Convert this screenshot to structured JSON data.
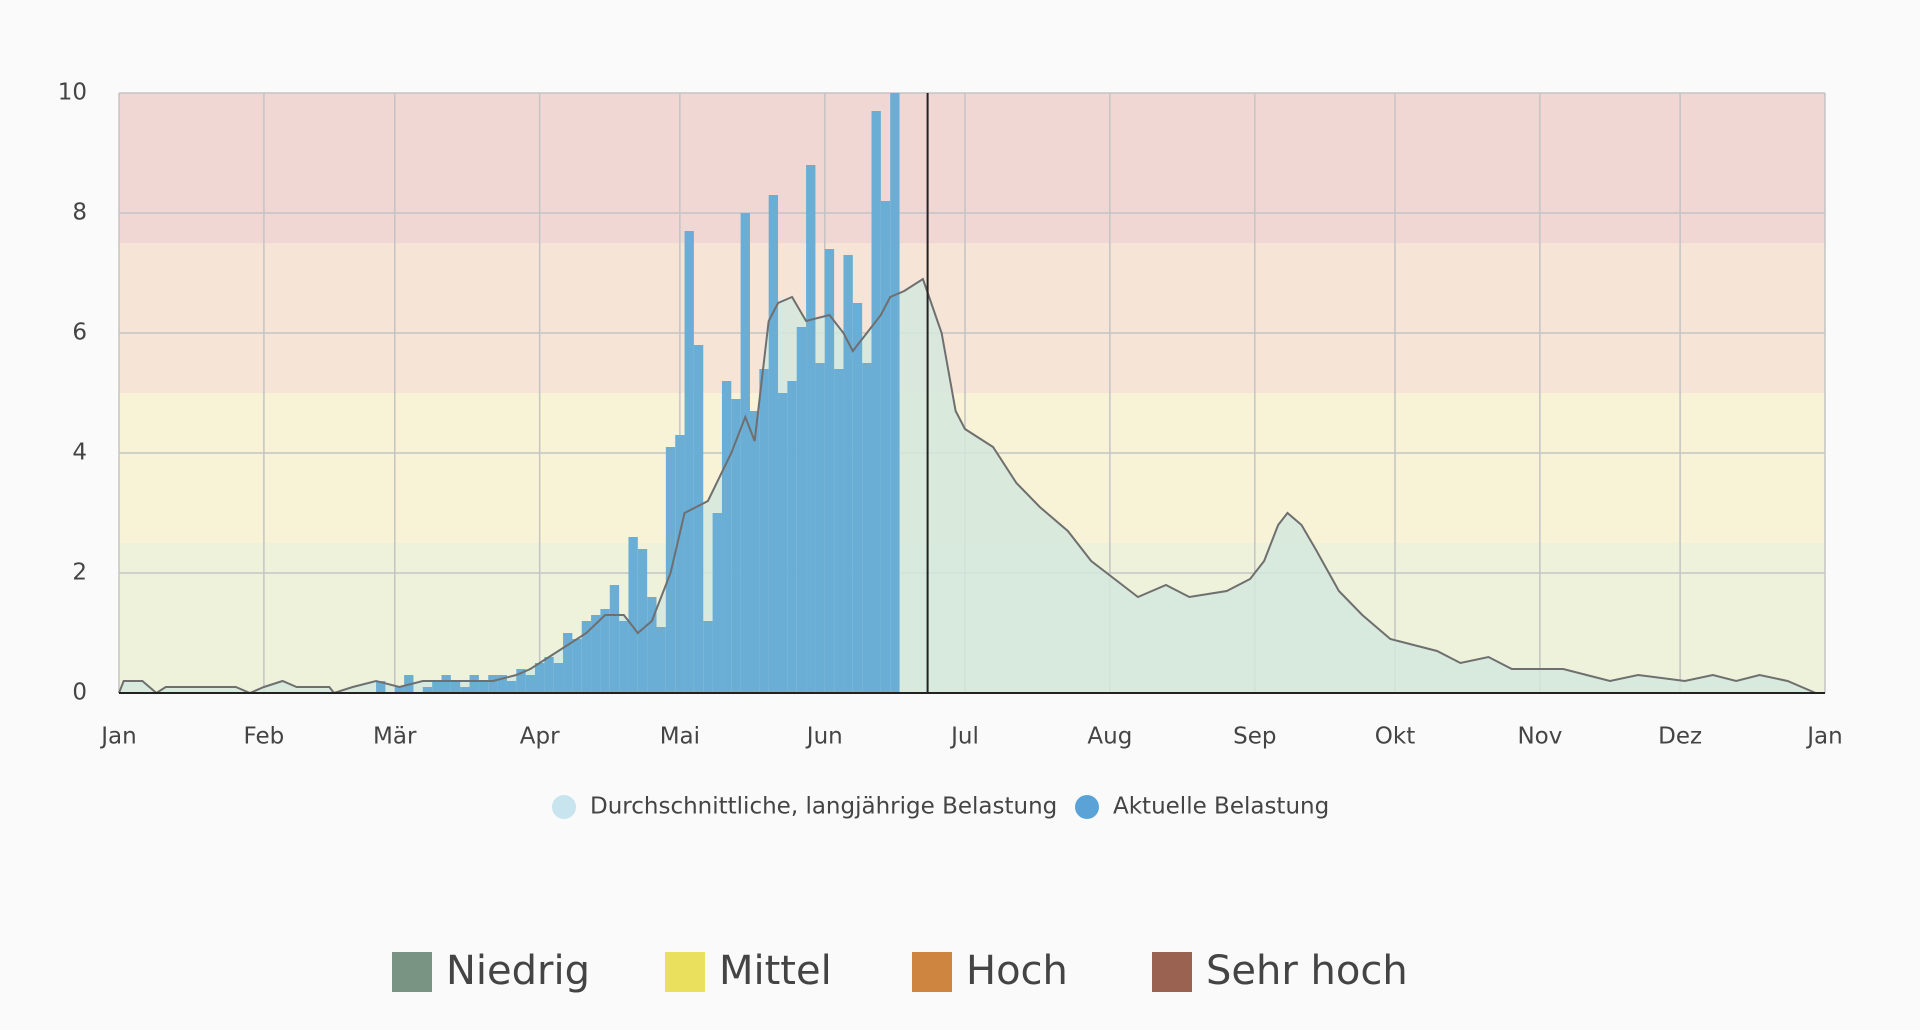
{
  "chart_data": {
    "type": "pollen",
    "xlim": [
      0,
      365
    ],
    "xticks": [
      {
        "value": 0,
        "label": "Jan"
      },
      {
        "value": 31,
        "label": "Feb"
      },
      {
        "value": 59,
        "label": "Mär"
      },
      {
        "value": 90,
        "label": "Apr"
      },
      {
        "value": 120,
        "label": "Mai"
      },
      {
        "value": 151,
        "label": "Jun"
      },
      {
        "value": 181,
        "label": "Jul"
      },
      {
        "value": 212,
        "label": "Aug"
      },
      {
        "value": 243,
        "label": "Sep"
      },
      {
        "value": 273,
        "label": "Okt"
      },
      {
        "value": 304,
        "label": "Nov"
      },
      {
        "value": 334,
        "label": "Dez"
      },
      {
        "value": 365,
        "label": "Jan"
      }
    ],
    "ylim": [
      0,
      10
    ],
    "yticks": [
      0,
      2,
      4,
      6,
      8,
      10
    ],
    "grid": true,
    "marker_x": 173,
    "series": [
      {
        "name": "Durchschnittliche, langjährige Belastung",
        "color": "#c8e4ef",
        "fill": "#d3e8dd",
        "line_color": "#6f6f6f",
        "x": [
          0,
          1,
          5,
          8,
          10,
          25,
          28,
          31,
          35,
          38,
          45,
          46,
          50,
          55,
          60,
          65,
          75,
          80,
          85,
          88,
          92,
          96,
          100,
          104,
          108,
          111,
          114,
          118,
          121,
          126,
          131,
          134,
          136,
          139,
          141,
          144,
          147,
          152,
          155,
          157,
          160,
          163,
          165,
          168,
          172,
          176,
          179,
          181,
          187,
          192,
          197,
          203,
          208,
          213,
          218,
          224,
          229,
          237,
          242,
          245,
          248,
          250,
          253,
          256,
          261,
          266,
          272,
          277,
          282,
          287,
          293,
          298,
          309,
          314,
          319,
          325,
          335,
          341,
          346,
          351,
          357,
          363
        ],
        "values": [
          0,
          0.2,
          0.2,
          0,
          0.1,
          0.1,
          0,
          0.1,
          0.2,
          0.1,
          0.1,
          0,
          0.1,
          0.2,
          0.1,
          0.2,
          0.2,
          0.2,
          0.3,
          0.4,
          0.6,
          0.8,
          1.0,
          1.3,
          1.3,
          1.0,
          1.2,
          2,
          3,
          3.2,
          4,
          4.6,
          4.2,
          6.2,
          6.5,
          6.6,
          6.2,
          6.3,
          6,
          5.7,
          6,
          6.3,
          6.6,
          6.7,
          6.9,
          6,
          4.7,
          4.4,
          4.1,
          3.5,
          3.1,
          2.7,
          2.2,
          1.9,
          1.6,
          1.8,
          1.6,
          1.7,
          1.9,
          2.2,
          2.8,
          3.0,
          2.8,
          2.4,
          1.7,
          1.3,
          0.9,
          0.8,
          0.7,
          0.5,
          0.6,
          0.4,
          0.4,
          0.3,
          0.2,
          0.3,
          0.2,
          0.3,
          0.2,
          0.3,
          0.2,
          0
        ]
      },
      {
        "name": "Aktuelle Belastung",
        "color": "#5ba3d6",
        "fill": "#6aaed6",
        "x": [
          56,
          58,
          60,
          62,
          64,
          66,
          68,
          70,
          72,
          74,
          76,
          78,
          80,
          82,
          84,
          86,
          88,
          90,
          92,
          94,
          96,
          98,
          100,
          102,
          104,
          106,
          108,
          110,
          112,
          114,
          116,
          118,
          120,
          122,
          124,
          126,
          128,
          130,
          132,
          134,
          136,
          138,
          140,
          142,
          144,
          146,
          148,
          150,
          152,
          154,
          156,
          158,
          160,
          162,
          164,
          166
        ],
        "values": [
          0.2,
          0,
          0.1,
          0.3,
          0,
          0.1,
          0.2,
          0.3,
          0.2,
          0.1,
          0.3,
          0.2,
          0.3,
          0.3,
          0.2,
          0.4,
          0.3,
          0.5,
          0.6,
          0.5,
          1.0,
          0.9,
          1.2,
          1.3,
          1.4,
          1.8,
          1.2,
          2.6,
          2.4,
          1.6,
          1.1,
          4.1,
          4.3,
          7.7,
          5.8,
          1.2,
          3.0,
          5.2,
          4.9,
          8.0,
          4.7,
          5.4,
          8.3,
          5.0,
          5.2,
          6.1,
          8.8,
          5.5,
          7.4,
          5.4,
          7.3,
          6.5,
          5.5,
          9.7,
          8.2,
          10
        ]
      }
    ],
    "levels": [
      {
        "name": "Niedrig",
        "color": "#7a9484",
        "band": [
          0,
          2.5
        ],
        "fill": "#eef2da"
      },
      {
        "name": "Mittel",
        "color": "#ebe05e",
        "band": [
          2.5,
          5
        ],
        "fill": "#f8f2d6"
      },
      {
        "name": "Hoch",
        "color": "#cd8540",
        "band": [
          5,
          7.5
        ],
        "fill": "#f6e4d6"
      },
      {
        "name": "Sehr hoch",
        "color": "#9a6250",
        "band": [
          7.5,
          10
        ],
        "fill": "#f0d7d4"
      }
    ]
  }
}
